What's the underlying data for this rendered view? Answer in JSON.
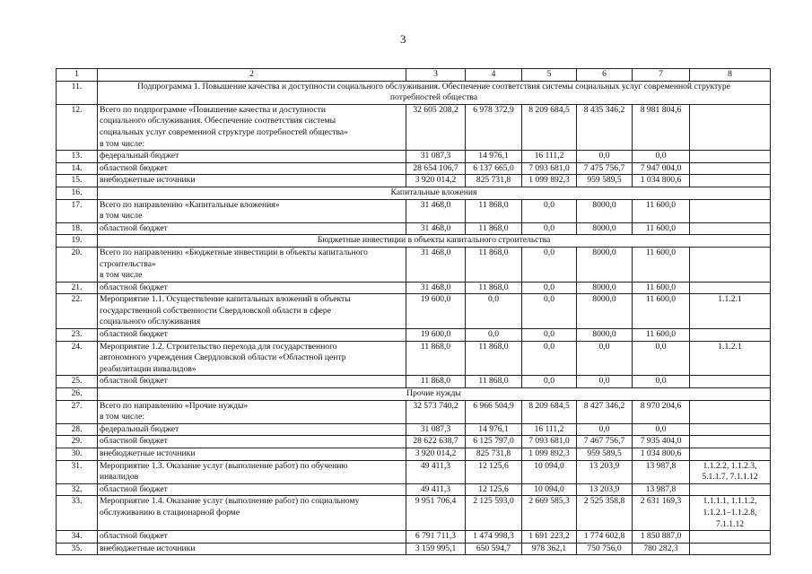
{
  "page_number": "3",
  "header": [
    "1",
    "2",
    "3",
    "4",
    "5",
    "6",
    "7",
    "8"
  ],
  "rows": [
    {
      "n": "11.",
      "section": "Подпрограмма 1. Повышение качества и доступности социального обслуживания. Обеспечение соответствия системы социальных услуг современной структуре\nпотребностей общества"
    },
    {
      "n": "12.",
      "name": "Всего по подпрограмме «Повышение качества и доступности\nсоциального обслуживания. Обеспечение соответствия системы\nсоциальных услуг современной структуре потребностей общества»\nв том числе:",
      "v": [
        "32 605 208,2",
        "6 978 372,9",
        "8 209 684,5",
        "8 435 346,2",
        "8 981 804,6"
      ],
      "ref": ""
    },
    {
      "n": "13.",
      "name": "федеральный бюджет",
      "v": [
        "31 087,3",
        "14 976,1",
        "16 111,2",
        "0,0",
        "0,0"
      ],
      "ref": ""
    },
    {
      "n": "14.",
      "name": "областной бюджет",
      "v": [
        "28 654 106,7",
        "6 137 665,0",
        "7 093 681,0",
        "7 475 756,7",
        "7 947 004,0"
      ],
      "ref": ""
    },
    {
      "n": "15.",
      "name": "внебюджетные источники",
      "v": [
        "3 920 014,2",
        "825 731,8",
        "1 099 892,3",
        "959 589,5",
        "1 034 800,6"
      ],
      "ref": ""
    },
    {
      "n": "16.",
      "section": "Капитальные вложения"
    },
    {
      "n": "17.",
      "name": "Всего по направлению «Капитальные вложения»\nв том числе",
      "v": [
        "31 468,0",
        "11 868,0",
        "0,0",
        "8000,0",
        "11 600,0"
      ],
      "ref": ""
    },
    {
      "n": "18.",
      "name": "областной бюджет",
      "v": [
        "31 468,0",
        "11 868,0",
        "0,0",
        "8000,0",
        "11 600,0"
      ],
      "ref": ""
    },
    {
      "n": "19.",
      "section": "Бюджетные инвестиции в объекты капитального строительства"
    },
    {
      "n": "20.",
      "name": "Всего по направлению «Бюджетные инвестиции в объекты капитального\nстроительства»\nв том числе",
      "v": [
        "31 468,0",
        "11 868,0",
        "0,0",
        "8000,0",
        "11 600,0"
      ],
      "ref": ""
    },
    {
      "n": "21.",
      "name": "областной бюджет",
      "v": [
        "31 468,0",
        "11 868,0",
        "0,0",
        "8000,0",
        "11 600,0"
      ],
      "ref": ""
    },
    {
      "n": "22.",
      "name": "Мероприятие 1.1. Осуществление капитальных вложений в объекты\nгосударственной собственности Свердловской области в сфере\nсоциального обслуживания",
      "v": [
        "19 600,0",
        "0,0",
        "0,0",
        "8000,0",
        "11 600,0"
      ],
      "ref": "1.1.2.1"
    },
    {
      "n": "23.",
      "name": "областной бюджет",
      "v": [
        "19 600,0",
        "0,0",
        "0,0",
        "8000,0",
        "11 600,0"
      ],
      "ref": ""
    },
    {
      "n": "24.",
      "name": "Мероприятие 1.2. Строительство перехода для государственного\nавтономного учреждения Свердловской области «Областной центр\nреабилитации инвалидов»",
      "v": [
        "11 868,0",
        "11 868,0",
        "0,0",
        "0,0",
        "0,0"
      ],
      "ref": "1.1.2.1"
    },
    {
      "n": "25.",
      "name": "областной бюджет",
      "v": [
        "11 868,0",
        "11 868,0",
        "0,0",
        "0,0",
        "0,0"
      ],
      "ref": ""
    },
    {
      "n": "26.",
      "section": "Прочие нужды"
    },
    {
      "n": "27.",
      "name": "Всего по направлению «Прочие нужды»\nв том числе:",
      "v": [
        "32 573 740,2",
        "6 966 504,9",
        "8 209 684,5",
        "8 427 346,2",
        "8 970 204,6"
      ],
      "ref": ""
    },
    {
      "n": "28.",
      "name": "федеральный бюджет",
      "v": [
        "31 087,3",
        "14 976,1",
        "16 111,2",
        "0,0",
        "0,0"
      ],
      "ref": ""
    },
    {
      "n": "29.",
      "name": "областной бюджет",
      "v": [
        "28 622 638,7",
        "6 125 797,0",
        "7 093 681,0",
        "7 467 756,7",
        "7 935 404,0"
      ],
      "ref": ""
    },
    {
      "n": "30.",
      "name": "внебюджетные источники",
      "v": [
        "3 920 014,2",
        "825 731,8",
        "1 099 892,3",
        "959 589,5",
        "1 034 800,6"
      ],
      "ref": ""
    },
    {
      "n": "31.",
      "name": "Мероприятие 1.3. Оказание услуг (выполнение работ) по обучению\nинвалидов",
      "v": [
        "49 411,3",
        "12 125,6",
        "10 094,0",
        "13 203,9",
        "13 987,8"
      ],
      "ref": "1.1.2.2, 1.1.2.3,\n5.1.1.7, 7.1.1.12"
    },
    {
      "n": "32.",
      "name": "областной бюджет",
      "v": [
        "49 411,3",
        "12 125,6",
        "10 094,0",
        "13 203,9",
        "13 987,8"
      ],
      "ref": ""
    },
    {
      "n": "33.",
      "name": "Мероприятие 1.4. Оказание услуг (выполнение работ) по социальному\nобслуживанию в стационарной форме",
      "v": [
        "9 951 706,4",
        "2 125 593,0",
        "2 669 585,3",
        "2 525 358,8",
        "2 631 169,3"
      ],
      "ref": "1.1.1.1, 1.1.1.2,\n1.1.2.1–1.1.2.8,\n7.1.1.12"
    },
    {
      "n": "34.",
      "name": "областной бюджет",
      "v": [
        "6 791 711,3",
        "1 474 998,3",
        "1 691 223,2",
        "1 774 602,8",
        "1 850 887,0"
      ],
      "ref": ""
    },
    {
      "n": "35.",
      "name": "внебюджетные источники",
      "v": [
        "3 159 995,1",
        "650 594,7",
        "978 362,1",
        "750 756,0",
        "780 282,3"
      ],
      "ref": ""
    }
  ]
}
